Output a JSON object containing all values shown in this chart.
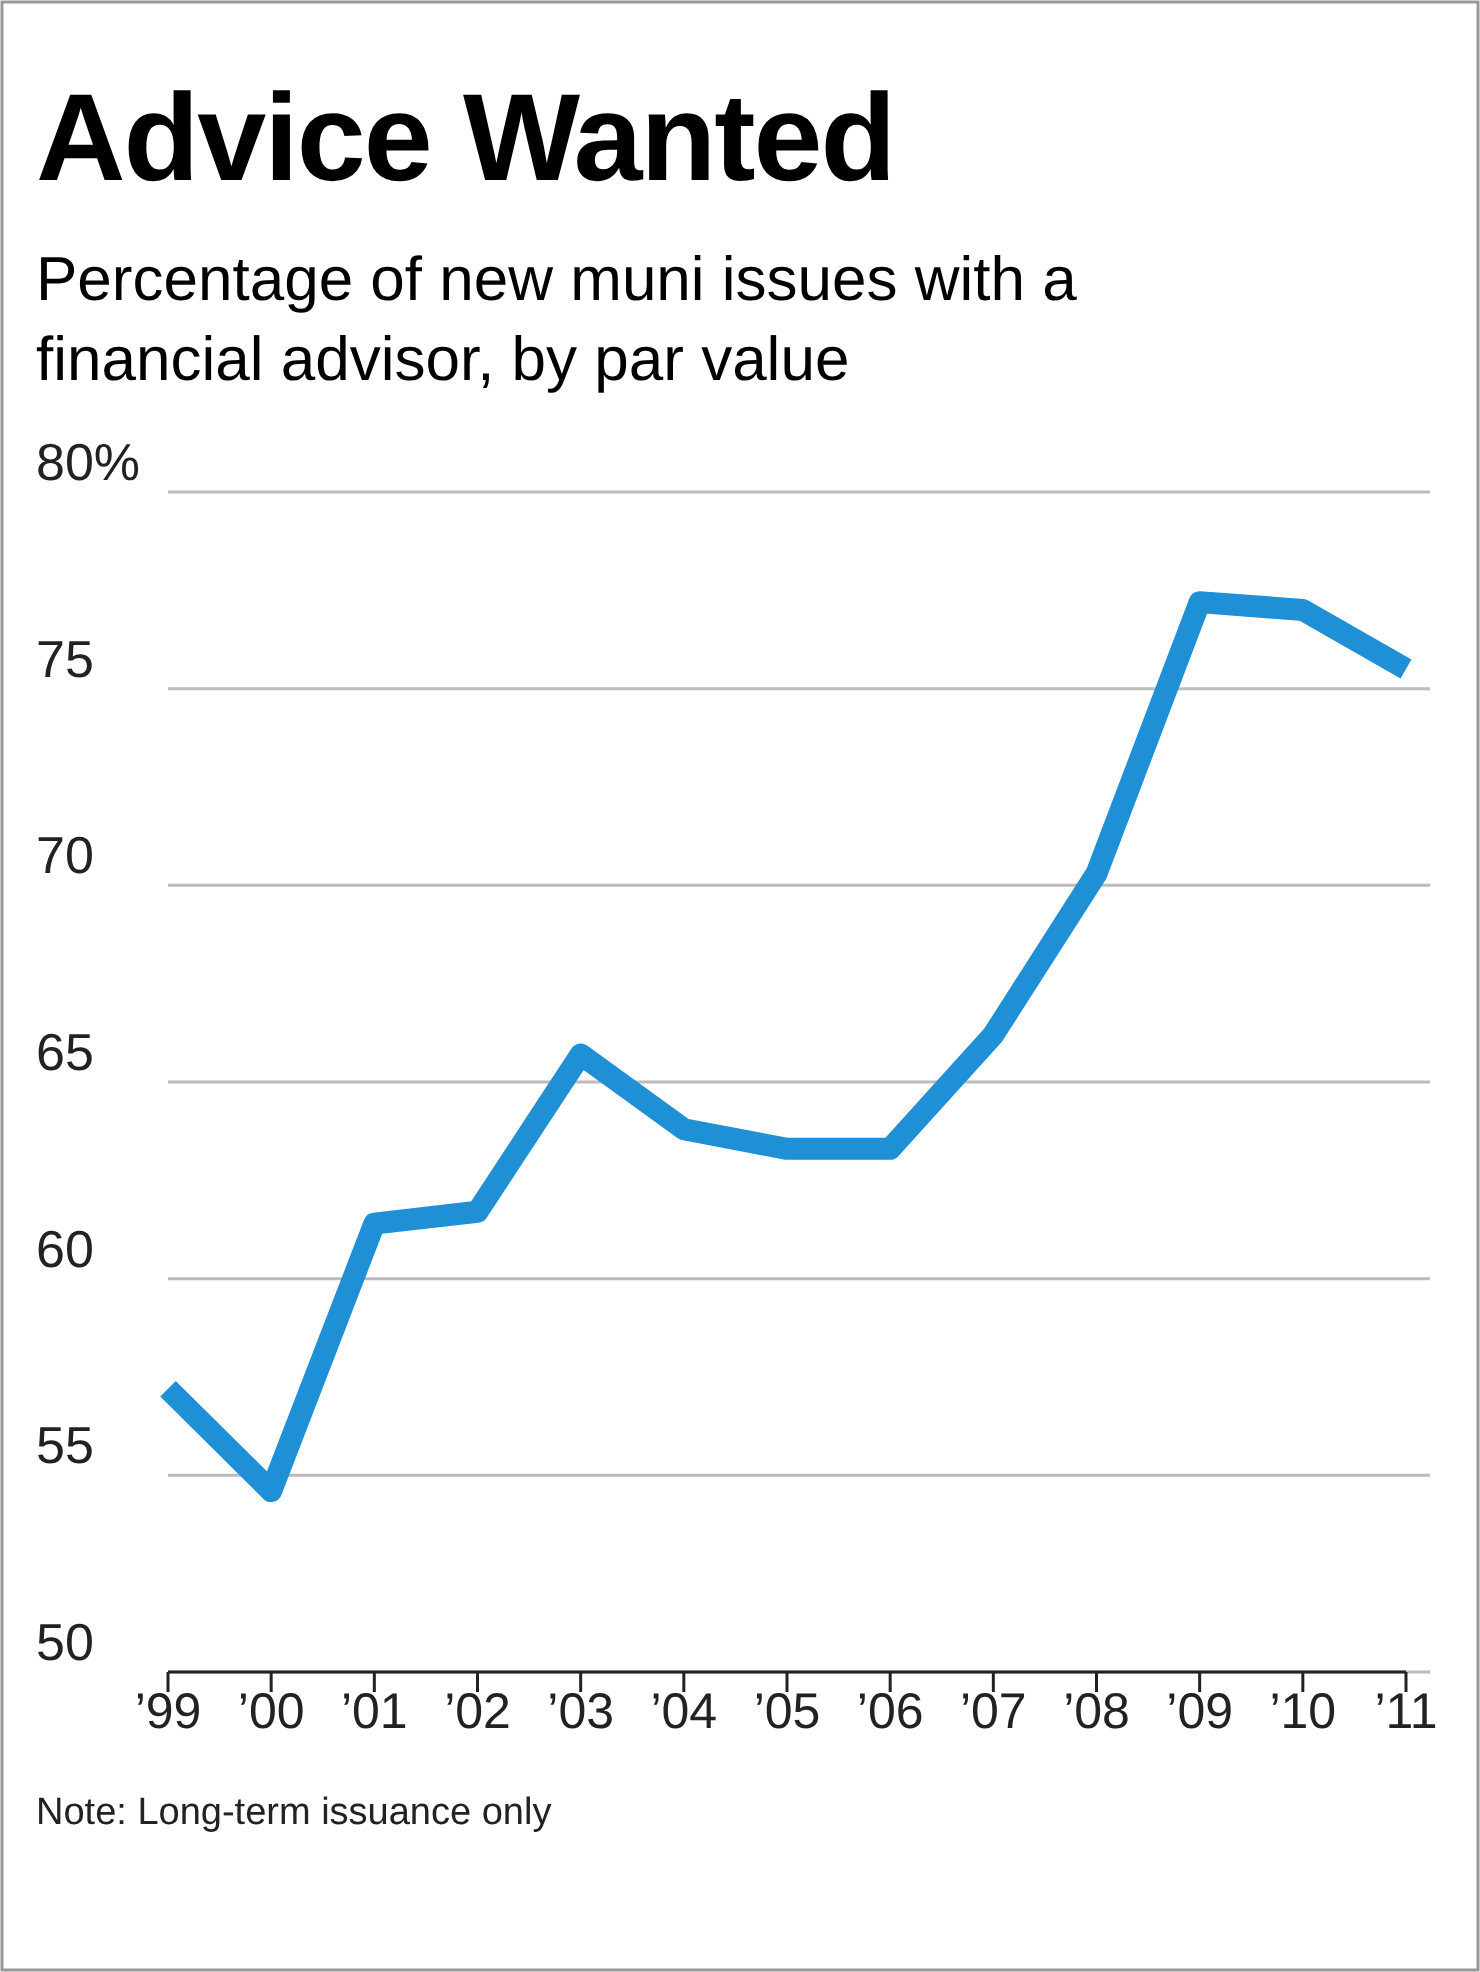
{
  "chart_data": {
    "type": "line",
    "title": "Advice Wanted",
    "subtitle": "Percentage of new muni issues with a financial advisor, by par value",
    "categories": [
      "’99",
      "’00",
      "’01",
      "’02",
      "’03",
      "’04",
      "’05",
      "’06",
      "’07",
      "’08",
      "’09",
      "’10",
      "’11"
    ],
    "series": [
      {
        "color": "#1f8fd6",
        "values": [
          57.2,
          54.6,
          61.4,
          61.7,
          65.7,
          63.8,
          63.3,
          63.3,
          66.2,
          70.3,
          77.2,
          77.0,
          75.5
        ]
      }
    ],
    "ylim": [
      50,
      80
    ],
    "yticks": [
      50,
      55,
      60,
      65,
      70,
      75,
      {
        "value": 80,
        "label": "80%"
      }
    ],
    "grid": "y",
    "marker": "none",
    "line_style": "solid",
    "annotations": [
      "Note: Long-term issuance only"
    ]
  }
}
